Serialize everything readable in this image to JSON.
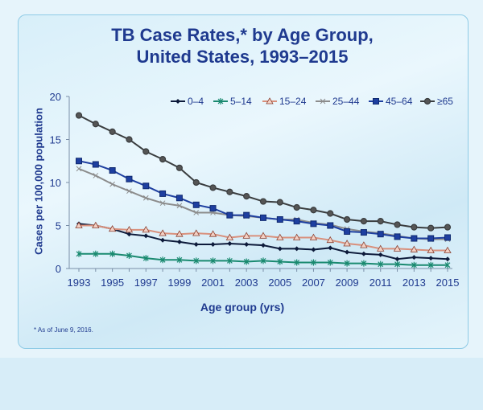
{
  "chart_data": {
    "type": "line",
    "title_line1": "TB Case Rates,* by Age Group,",
    "title_line2": "United States, 1993–2015",
    "xlabel": "Age group (yrs)",
    "ylabel": "Cases per 100,000 population",
    "footnote": "* As of June 9, 2016.",
    "ylim": [
      0,
      20
    ],
    "yticks": [
      "0",
      "5",
      "10",
      "15",
      "20"
    ],
    "xlim": [
      1993,
      2015
    ],
    "xticks": [
      "1993",
      "1995",
      "1997",
      "1999",
      "2001",
      "2003",
      "2005",
      "2007",
      "2009",
      "2011",
      "2013",
      "2015"
    ],
    "legend_position": "top-right",
    "x": [
      1993,
      1994,
      1995,
      1996,
      1997,
      1998,
      1999,
      2000,
      2001,
      2002,
      2003,
      2004,
      2005,
      2006,
      2007,
      2008,
      2009,
      2010,
      2011,
      2012,
      2013,
      2014,
      2015
    ],
    "series": [
      {
        "name": "0–4",
        "color": "#0d1a3a",
        "marker": "diamond",
        "values": [
          5.2,
          5.0,
          4.6,
          4.0,
          3.8,
          3.3,
          3.1,
          2.8,
          2.8,
          2.9,
          2.8,
          2.7,
          2.3,
          2.3,
          2.2,
          2.4,
          1.9,
          1.7,
          1.6,
          1.1,
          1.3,
          1.2,
          1.1
        ]
      },
      {
        "name": "5–14",
        "color": "#1a8a70",
        "marker": "asterisk",
        "values": [
          1.7,
          1.7,
          1.7,
          1.5,
          1.2,
          1.0,
          1.0,
          0.9,
          0.9,
          0.9,
          0.8,
          0.9,
          0.8,
          0.7,
          0.7,
          0.7,
          0.6,
          0.6,
          0.5,
          0.5,
          0.4,
          0.4,
          0.4
        ]
      },
      {
        "name": "15–24",
        "color": "#d9907c",
        "marker": "triangle",
        "values": [
          5.0,
          5.0,
          4.6,
          4.5,
          4.5,
          4.1,
          4.0,
          4.1,
          4.0,
          3.6,
          3.8,
          3.8,
          3.6,
          3.6,
          3.6,
          3.3,
          2.9,
          2.7,
          2.3,
          2.3,
          2.2,
          2.1,
          2.1
        ]
      },
      {
        "name": "25–44",
        "color": "#8c8c8c",
        "marker": "cross",
        "values": [
          11.6,
          10.8,
          9.8,
          9.0,
          8.2,
          7.6,
          7.3,
          6.5,
          6.5,
          6.2,
          6.1,
          5.9,
          5.7,
          5.7,
          5.3,
          5.1,
          4.6,
          4.3,
          4.1,
          3.8,
          3.5,
          3.4,
          3.4
        ]
      },
      {
        "name": "45–64",
        "color": "#1e3fa0",
        "marker": "square",
        "values": [
          12.5,
          12.1,
          11.4,
          10.4,
          9.6,
          8.7,
          8.2,
          7.4,
          7.0,
          6.2,
          6.2,
          5.9,
          5.7,
          5.5,
          5.2,
          5.0,
          4.3,
          4.2,
          4.0,
          3.7,
          3.5,
          3.5,
          3.6
        ]
      },
      {
        "name": "≥65",
        "color": "#3a3d3f",
        "marker": "circle",
        "values": [
          17.8,
          16.8,
          15.9,
          15.0,
          13.6,
          12.7,
          11.7,
          10.0,
          9.4,
          8.9,
          8.4,
          7.8,
          7.7,
          7.1,
          6.8,
          6.4,
          5.7,
          5.5,
          5.5,
          5.1,
          4.8,
          4.7,
          4.8
        ]
      }
    ]
  }
}
